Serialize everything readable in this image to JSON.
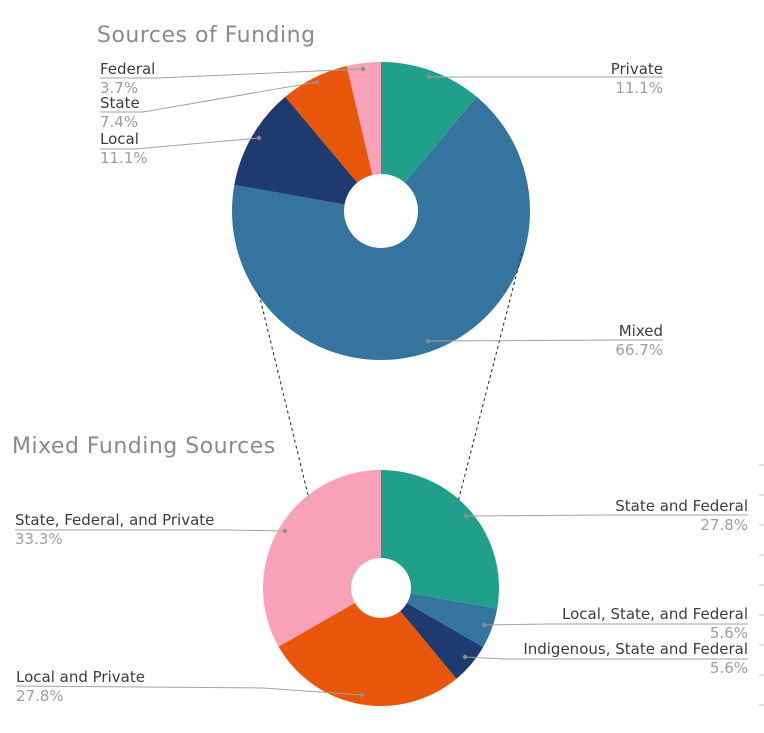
{
  "colors": {
    "background": "#ffffff",
    "title_text": "#8a8a8a",
    "label_text": "#3d3d3d",
    "percent_text": "#9e9e9e",
    "leader_line": "#a3a3a3",
    "leader_dot": "#8c8c8c",
    "connector_line": "#222222",
    "edge_tick": "#d9d9d9",
    "palette": {
      "teal": "#20a08b",
      "blue": "#35749e",
      "navy": "#1f3a6e",
      "orange": "#e8560c",
      "pink": "#f9a1b8"
    }
  },
  "chart_data": [
    {
      "type": "pie",
      "donut": true,
      "hole_ratio": 0.25,
      "title": "Sources of Funding",
      "start_angle_deg": 0,
      "direction": "clockwise",
      "legend": "none",
      "labels": [
        "Private",
        "Mixed",
        "Local",
        "State",
        "Federal"
      ],
      "values": [
        11.1,
        66.7,
        11.1,
        7.4,
        3.7
      ],
      "percent_labels": [
        "11.1%",
        "66.7%",
        "11.1%",
        "7.4%",
        "3.7%"
      ],
      "colors": [
        "#20a08b",
        "#35749e",
        "#1f3a6e",
        "#e8560c",
        "#f9a1b8"
      ]
    },
    {
      "type": "pie",
      "donut": true,
      "hole_ratio": 0.25,
      "title": "Mixed Funding Sources",
      "start_angle_deg": 0,
      "direction": "clockwise",
      "legend": "none",
      "labels": [
        "State and Federal",
        "Local, State, and Federal",
        "Indigenous, State and Federal",
        "Local and Private",
        "State, Federal, and Private"
      ],
      "values": [
        27.8,
        5.6,
        5.6,
        27.8,
        33.3
      ],
      "percent_labels": [
        "27.8%",
        "5.6%",
        "5.6%",
        "27.8%",
        "33.3%"
      ],
      "colors": [
        "#20a08b",
        "#35749e",
        "#1f3a6e",
        "#e8560c",
        "#f9a1b8"
      ]
    }
  ]
}
